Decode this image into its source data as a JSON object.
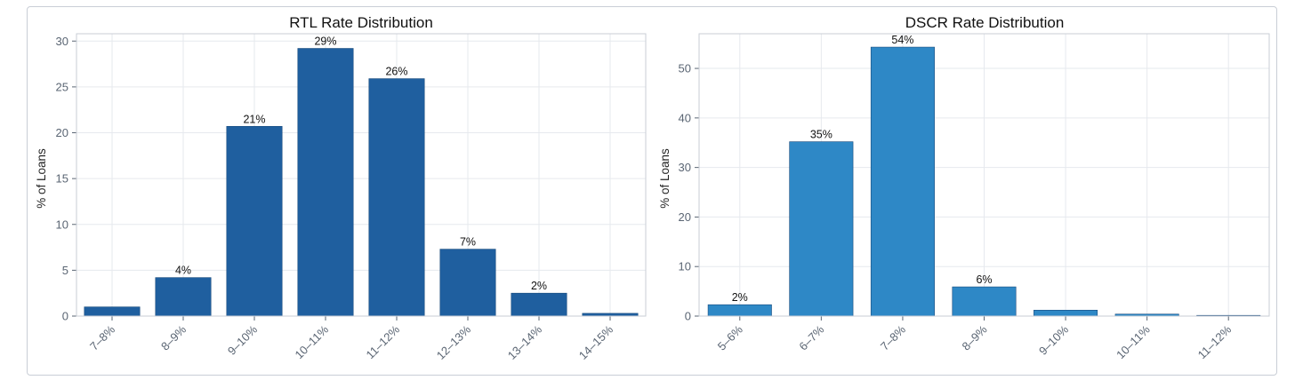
{
  "chart_data": [
    {
      "type": "bar",
      "title": "RTL Rate Distribution",
      "xlabel": "",
      "ylabel": "% of Loans",
      "categories": [
        "7–8%",
        "8–9%",
        "9–10%",
        "10–11%",
        "11–12%",
        "12–13%",
        "13–14%",
        "14–15%"
      ],
      "values": [
        1.0,
        4.2,
        20.7,
        29.2,
        25.9,
        7.3,
        2.5,
        0.3
      ],
      "data_labels": [
        "",
        "4%",
        "21%",
        "29%",
        "26%",
        "7%",
        "2%",
        ""
      ],
      "ylim": [
        0,
        30.8
      ],
      "yticks": [
        0,
        5,
        10,
        15,
        20,
        25,
        30
      ],
      "grid": true,
      "color": "#1f5f9f"
    },
    {
      "type": "bar",
      "title": "DSCR Rate Distribution",
      "xlabel": "",
      "ylabel": "% of Loans",
      "categories": [
        "5–6%",
        "6–7%",
        "7–8%",
        "8–9%",
        "9–10%",
        "10–11%",
        "11–12%"
      ],
      "values": [
        2.3,
        35.2,
        54.3,
        5.9,
        1.2,
        0.4,
        0.05
      ],
      "data_labels": [
        "2%",
        "35%",
        "54%",
        "6%",
        "",
        "",
        ""
      ],
      "ylim": [
        0,
        57
      ],
      "yticks": [
        0,
        10,
        20,
        30,
        40,
        50
      ],
      "grid": true,
      "color": "#2e88c6"
    }
  ]
}
